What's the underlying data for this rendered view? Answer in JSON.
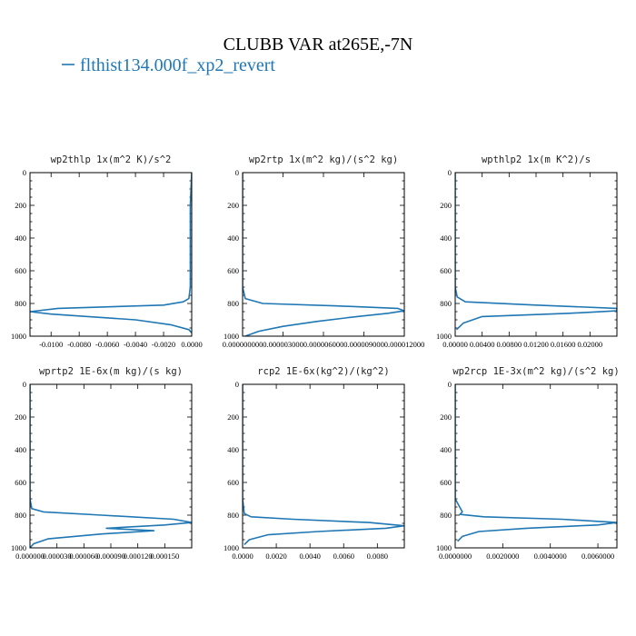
{
  "figure": {
    "title": "CLUBB VAR at265E,-7N",
    "legend": {
      "label": "flthist134.000f_xp2_revert",
      "color": "#1f77b4"
    }
  },
  "chart_data": [
    {
      "type": "line",
      "title": "wp2thlp   1x(m^2 K)/s^2",
      "xlim": [
        -0.0115,
        0.0
      ],
      "ylim": [
        1000,
        0
      ],
      "xticks": [
        -0.01,
        -0.008,
        -0.006,
        -0.004,
        -0.002,
        0.0
      ],
      "xtick_labels": [
        "-0.0100",
        "-0.0080",
        "-0.0060",
        "-0.0040",
        "-0.0020",
        "0.0000"
      ],
      "yticks": [
        0,
        200,
        400,
        600,
        800,
        1000
      ],
      "series": [
        {
          "x": [
            0.0,
            -0.0001,
            -0.0001,
            -0.0001,
            -0.0002,
            -0.0006,
            -0.002,
            -0.0095,
            -0.0115,
            -0.01,
            -0.004,
            -0.0015,
            -0.0002,
            0.0
          ],
          "y": [
            0,
            200,
            500,
            700,
            770,
            790,
            810,
            830,
            850,
            865,
            900,
            930,
            960,
            980
          ]
        }
      ]
    },
    {
      "type": "line",
      "title": "wp2rtp   1x(m^2 kg)/(s^2 kg)",
      "xlim": [
        0.0,
        1.2e-05
      ],
      "ylim": [
        1000,
        0
      ],
      "xticks": [
        0.0,
        3e-06,
        6e-06,
        9e-06,
        1.2e-05
      ],
      "xtick_labels": [
        "0.000000000",
        "0.000003000",
        "0.000006000",
        "0.000009000",
        "0.000012000"
      ],
      "yticks": [
        0,
        200,
        400,
        600,
        800,
        1000
      ],
      "series": [
        {
          "x": [
            0.0,
            0.0,
            2e-07,
            1.5e-06,
            7e-06,
            1.15e-05,
            1.2e-05,
            1.08e-05,
            8.5e-06,
            5.5e-06,
            3e-06,
            1.2e-06,
            2e-07
          ],
          "y": [
            0,
            700,
            770,
            800,
            815,
            830,
            845,
            860,
            880,
            910,
            940,
            970,
            1000
          ]
        }
      ]
    },
    {
      "type": "line",
      "title": "wpthlp2   1x(m K^2)/s",
      "xlim": [
        0.0,
        0.024
      ],
      "ylim": [
        1000,
        0
      ],
      "xticks": [
        0.0,
        0.004,
        0.008,
        0.012,
        0.016,
        0.02
      ],
      "xtick_labels": [
        "0.00000",
        "0.00400",
        "0.00800",
        "0.01200",
        "0.01600",
        "0.02000"
      ],
      "yticks": [
        0,
        200,
        400,
        600,
        800,
        1000
      ],
      "series": [
        {
          "x": [
            0.0,
            0.0,
            0.0003,
            0.0015,
            0.012,
            0.024,
            0.024,
            0.017,
            0.004,
            0.0012,
            0.0002
          ],
          "y": [
            0,
            700,
            760,
            790,
            810,
            830,
            845,
            860,
            880,
            920,
            960
          ]
        }
      ]
    },
    {
      "type": "line",
      "title": "wprtp2   1E-6x(m kg)/(s kg)",
      "xlim": [
        0.0,
        0.00018
      ],
      "ylim": [
        1000,
        0
      ],
      "xticks": [
        0.0,
        3e-05,
        6e-05,
        9e-05,
        0.00012,
        0.00015
      ],
      "xtick_labels": [
        "0.000000",
        "0.000030",
        "0.000060",
        "0.000090",
        "0.000120",
        "0.000150"
      ],
      "yticks": [
        0,
        200,
        400,
        600,
        800,
        1000
      ],
      "series": [
        {
          "x": [
            0.0,
            0.0,
            2e-06,
            1.5e-05,
            8e-05,
            0.00016,
            0.00018,
            0.00015,
            8.5e-05,
            0.000138,
            8e-05,
            2e-05,
            4e-06,
            0.0
          ],
          "y": [
            0,
            700,
            760,
            780,
            800,
            825,
            845,
            860,
            880,
            895,
            915,
            945,
            975,
            1000
          ]
        }
      ]
    },
    {
      "type": "line",
      "title": "rcp2   1E-6x(kg^2)/(kg^2)",
      "xlim": [
        0.0,
        0.0096
      ],
      "ylim": [
        1000,
        0
      ],
      "xticks": [
        0.0,
        0.002,
        0.004,
        0.006,
        0.008
      ],
      "xtick_labels": [
        "0.0000",
        "0.0020",
        "0.0040",
        "0.0060",
        "0.0080"
      ],
      "yticks": [
        0,
        200,
        400,
        600,
        800,
        1000
      ],
      "series": [
        {
          "x": [
            0.0,
            0.0,
            0.0001,
            0.0005,
            0.003,
            0.0075,
            0.0096,
            0.0085,
            0.0045,
            0.0015,
            0.0004,
            0.0001
          ],
          "y": [
            0,
            700,
            790,
            810,
            825,
            845,
            865,
            880,
            900,
            920,
            950,
            980
          ]
        }
      ]
    },
    {
      "type": "line",
      "title": "wp2rcp   1E-3x(m^2 kg)/(s^2 kg)",
      "xlim": [
        0.0,
        0.0068
      ],
      "ylim": [
        1000,
        0
      ],
      "xticks": [
        0.0,
        0.002,
        0.004,
        0.006
      ],
      "xtick_labels": [
        "0.0000000",
        "0.0020000",
        "0.0040000",
        "0.0060000"
      ],
      "yticks": [
        0,
        200,
        400,
        600,
        800,
        1000
      ],
      "series": [
        {
          "x": [
            0.0,
            0.0,
            0.0003,
            0.0002,
            0.0012,
            0.0045,
            0.0068,
            0.006,
            0.003,
            0.001,
            0.0003,
            0.0001
          ],
          "y": [
            0,
            700,
            780,
            795,
            810,
            825,
            845,
            860,
            880,
            900,
            930,
            960
          ]
        }
      ]
    }
  ]
}
